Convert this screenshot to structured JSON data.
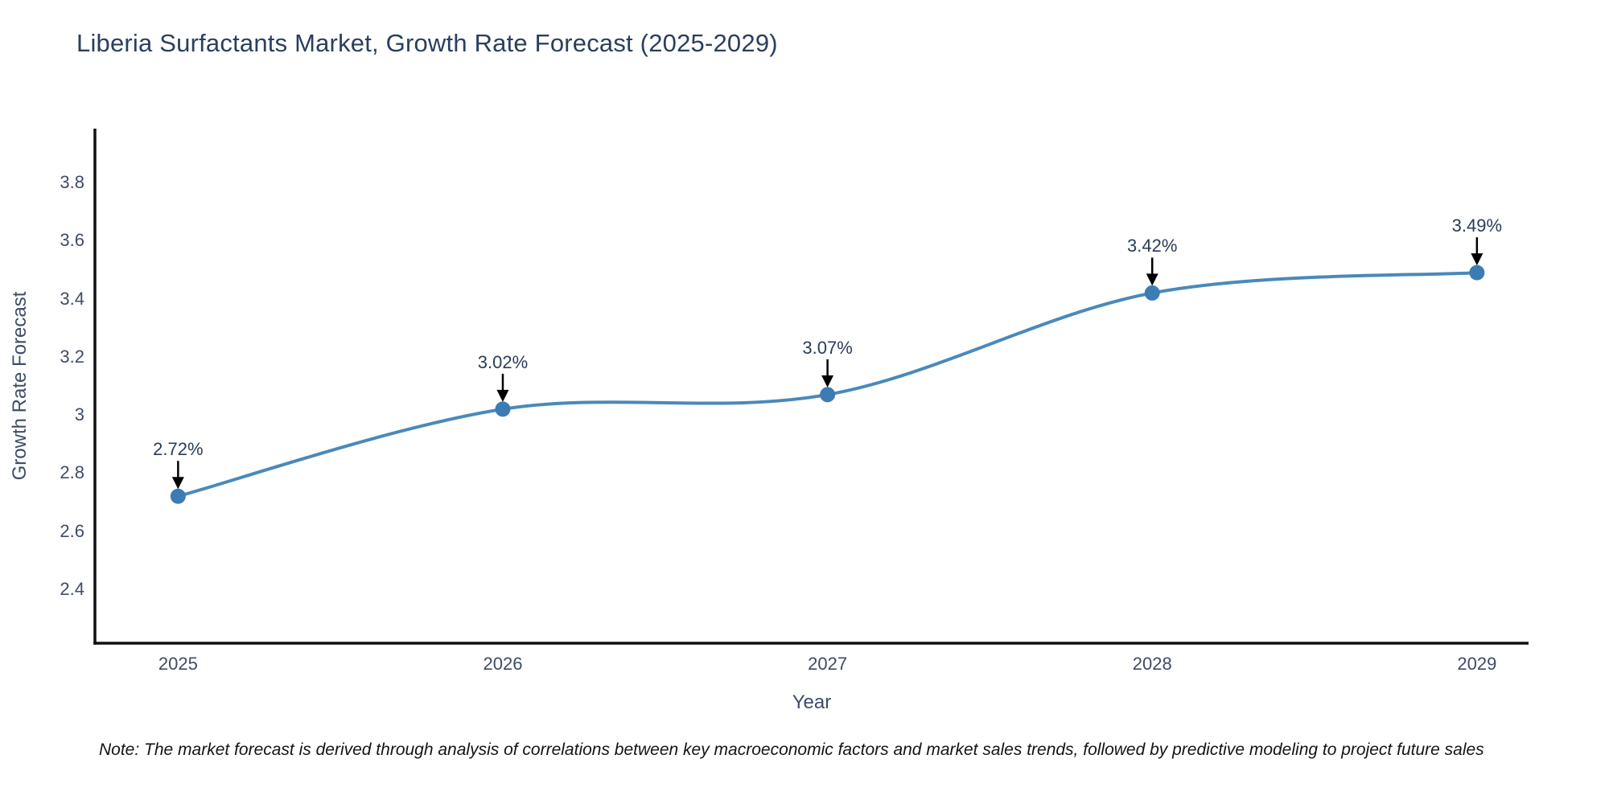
{
  "title": "Liberia Surfactants Market, Growth Rate Forecast (2025-2029)",
  "note": "Note: The market forecast is derived through analysis of correlations between key macroeconomic factors and market sales trends, followed by predictive modeling to project future sales",
  "chart_data": {
    "type": "line",
    "title": "Liberia Surfactants Market, Growth Rate Forecast (2025-2029)",
    "x": [
      2025,
      2026,
      2027,
      2028,
      2029
    ],
    "categories": [
      "2025",
      "2026",
      "2027",
      "2028",
      "2029"
    ],
    "series": [
      {
        "name": "Growth Rate Forecast",
        "values": [
          2.72,
          3.02,
          3.07,
          3.42,
          3.49
        ]
      }
    ],
    "point_labels": [
      "2.72%",
      "3.02%",
      "3.07%",
      "3.42%",
      "3.49%"
    ],
    "xlabel": "Year",
    "ylabel": "Growth Rate Forecast",
    "yticks": [
      "2.4",
      "2.6",
      "2.8",
      "3",
      "3.2",
      "3.4",
      "3.6",
      "3.8"
    ],
    "ytick_values": [
      2.4,
      2.6,
      2.8,
      3.0,
      3.2,
      3.4,
      3.6,
      3.8
    ],
    "ylim": [
      2.214,
      3.986
    ],
    "grid": false,
    "legend": "none",
    "line_shape": "spline",
    "colors": {
      "line": "#4a89ba",
      "marker": "#3c7cb4",
      "annotation_arrow": "#000000",
      "axis_line": "#111111",
      "title_text": "#2a3f5f",
      "tick_text": "#3e4c66",
      "note_text": "#141414"
    }
  }
}
